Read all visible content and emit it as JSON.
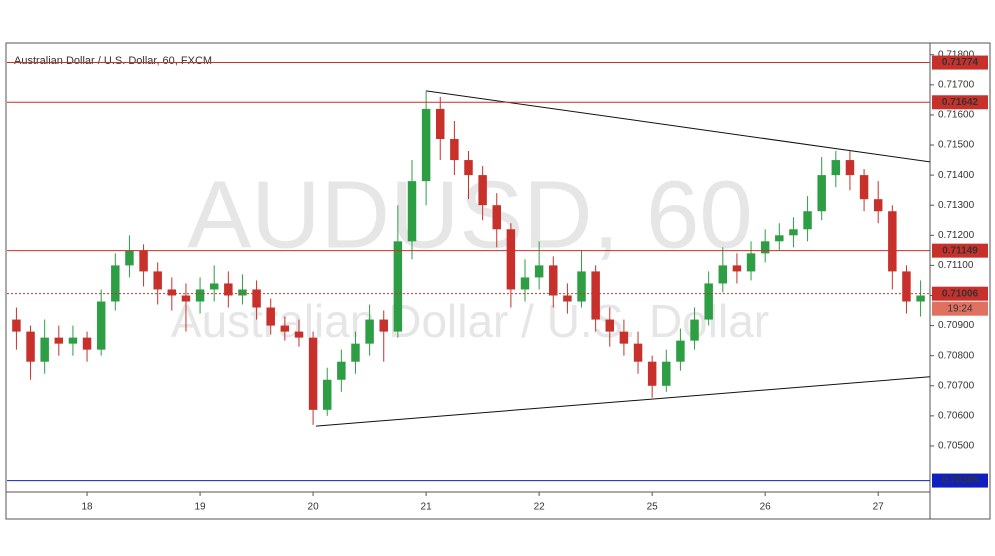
{
  "chart_data": {
    "type": "candlestick",
    "title": "Australian Dollar / U.S. Dollar, 60, FXCM",
    "watermark": "AUDUSD, 60",
    "watermark_subtitle": "Australian Dollar / U.S. Dollar",
    "countdown": "19:24",
    "up_color": "#2e9e44",
    "down_color": "#c8302b",
    "x": [
      9,
      12,
      15,
      18,
      21,
      24,
      27,
      30,
      33,
      36,
      39,
      42,
      45,
      48,
      51,
      54,
      57,
      60,
      63,
      66,
      69,
      72,
      75,
      78,
      81,
      84,
      87,
      90,
      93,
      96,
      99,
      102,
      105,
      108,
      111,
      114,
      117,
      120,
      123,
      126,
      129,
      132,
      135,
      138,
      141,
      144,
      147,
      150,
      153,
      156,
      159,
      162,
      165,
      168,
      171,
      174,
      177,
      180,
      183,
      186,
      189,
      192,
      195,
      198,
      201
    ],
    "open": [
      0.7092,
      0.7088,
      0.7078,
      0.7086,
      0.7084,
      0.7086,
      0.7082,
      0.7098,
      0.711,
      0.7115,
      0.7108,
      0.7102,
      0.71,
      0.7098,
      0.7102,
      0.7104,
      0.71,
      0.7102,
      0.7096,
      0.709,
      0.7088,
      0.7086,
      0.7062,
      0.7072,
      0.7078,
      0.7084,
      0.7092,
      0.7088,
      0.7118,
      0.7138,
      0.7162,
      0.7152,
      0.7145,
      0.714,
      0.713,
      0.7122,
      0.7102,
      0.7106,
      0.711,
      0.71,
      0.7098,
      0.7108,
      0.7092,
      0.7088,
      0.7084,
      0.7078,
      0.707,
      0.7078,
      0.7085,
      0.7092,
      0.7104,
      0.711,
      0.7108,
      0.7114,
      0.7118,
      0.712,
      0.7122,
      0.7128,
      0.714,
      0.7145,
      0.714,
      0.7132,
      0.7128,
      0.7108,
      0.7098
    ],
    "high": [
      0.7096,
      0.709,
      0.7092,
      0.709,
      0.709,
      0.7088,
      0.7102,
      0.7114,
      0.712,
      0.7117,
      0.7111,
      0.7106,
      0.7104,
      0.7106,
      0.711,
      0.7108,
      0.7107,
      0.7105,
      0.7099,
      0.7093,
      0.7092,
      0.7088,
      0.7076,
      0.7082,
      0.7088,
      0.7097,
      0.7095,
      0.713,
      0.7145,
      0.7168,
      0.7166,
      0.7158,
      0.7148,
      0.7143,
      0.7134,
      0.7124,
      0.7112,
      0.7118,
      0.7113,
      0.7104,
      0.7115,
      0.711,
      0.7096,
      0.7092,
      0.7088,
      0.708,
      0.7082,
      0.7089,
      0.7096,
      0.7108,
      0.7116,
      0.7114,
      0.7118,
      0.7122,
      0.7124,
      0.7126,
      0.7133,
      0.7146,
      0.7148,
      0.7148,
      0.7142,
      0.7138,
      0.713,
      0.711,
      0.7105
    ],
    "low": [
      0.7082,
      0.7072,
      0.7074,
      0.708,
      0.708,
      0.7078,
      0.708,
      0.7095,
      0.7106,
      0.7103,
      0.7097,
      0.7095,
      0.7088,
      0.7094,
      0.7098,
      0.7096,
      0.7097,
      0.7092,
      0.7087,
      0.7085,
      0.7083,
      0.7057,
      0.706,
      0.7068,
      0.7074,
      0.708,
      0.7078,
      0.7086,
      0.7112,
      0.713,
      0.7145,
      0.714,
      0.7132,
      0.7125,
      0.7116,
      0.7096,
      0.7098,
      0.7102,
      0.7096,
      0.7094,
      0.7096,
      0.7088,
      0.7083,
      0.708,
      0.7074,
      0.7066,
      0.7068,
      0.7075,
      0.7082,
      0.709,
      0.7101,
      0.7104,
      0.7105,
      0.7111,
      0.7115,
      0.7116,
      0.7118,
      0.7125,
      0.7136,
      0.7135,
      0.7128,
      0.7124,
      0.7102,
      0.7094,
      0.7093
    ],
    "close": [
      0.7088,
      0.7078,
      0.7086,
      0.7084,
      0.7086,
      0.7082,
      0.7098,
      0.711,
      0.7115,
      0.7108,
      0.7102,
      0.71,
      0.7098,
      0.7102,
      0.7104,
      0.71,
      0.7102,
      0.7096,
      0.709,
      0.7088,
      0.7086,
      0.7062,
      0.7072,
      0.7078,
      0.7084,
      0.7092,
      0.7088,
      0.7118,
      0.7138,
      0.7162,
      0.7152,
      0.7145,
      0.714,
      0.713,
      0.7122,
      0.7102,
      0.7106,
      0.711,
      0.71,
      0.7098,
      0.7108,
      0.7092,
      0.7088,
      0.7084,
      0.7078,
      0.707,
      0.7078,
      0.7085,
      0.7092,
      0.7104,
      0.711,
      0.7108,
      0.7114,
      0.7118,
      0.712,
      0.7122,
      0.7128,
      0.714,
      0.7145,
      0.714,
      0.7132,
      0.7128,
      0.7108,
      0.7098,
      0.71
    ],
    "xlim": [
      7,
      203
    ],
    "ylim": [
      0.70347,
      0.71839
    ],
    "xticks": [
      {
        "value": 24,
        "label": "18"
      },
      {
        "value": 48,
        "label": "19"
      },
      {
        "value": 72,
        "label": "20"
      },
      {
        "value": 96,
        "label": "21"
      },
      {
        "value": 120,
        "label": "22"
      },
      {
        "value": 144,
        "label": "25"
      },
      {
        "value": 168,
        "label": "26"
      },
      {
        "value": 192,
        "label": "27"
      }
    ],
    "yticks": [
      {
        "value": 0.705,
        "label": "0.70500"
      },
      {
        "value": 0.706,
        "label": "0.70600"
      },
      {
        "value": 0.707,
        "label": "0.70700"
      },
      {
        "value": 0.708,
        "label": "0.70800"
      },
      {
        "value": 0.709,
        "label": "0.70900"
      },
      {
        "value": 0.71,
        "label": "0.71000"
      },
      {
        "value": 0.711,
        "label": "0.71100"
      },
      {
        "value": 0.712,
        "label": "0.71200"
      },
      {
        "value": 0.713,
        "label": "0.71300"
      },
      {
        "value": 0.714,
        "label": "0.71400"
      },
      {
        "value": 0.715,
        "label": "0.71500"
      },
      {
        "value": 0.716,
        "label": "0.71600"
      },
      {
        "value": 0.717,
        "label": "0.71700"
      },
      {
        "value": 0.718,
        "label": "0.71800"
      }
    ],
    "levels": [
      {
        "value": 0.71774,
        "color": "#c8302b",
        "style": "solid"
      },
      {
        "value": 0.71642,
        "color": "#c8302b",
        "style": "solid"
      },
      {
        "value": 0.71149,
        "color": "#c8302b",
        "style": "solid"
      },
      {
        "value": 0.71006,
        "color": "#c8302b",
        "style": "dotted"
      },
      {
        "value": 0.70385,
        "color": "#1020c0",
        "style": "solid"
      }
    ],
    "trendlines": [
      {
        "x": [
          96,
          203
        ],
        "y": [
          0.7168,
          0.71444
        ]
      },
      {
        "x": [
          72.6,
          203
        ],
        "y": [
          0.70566,
          0.7073
        ]
      }
    ]
  }
}
